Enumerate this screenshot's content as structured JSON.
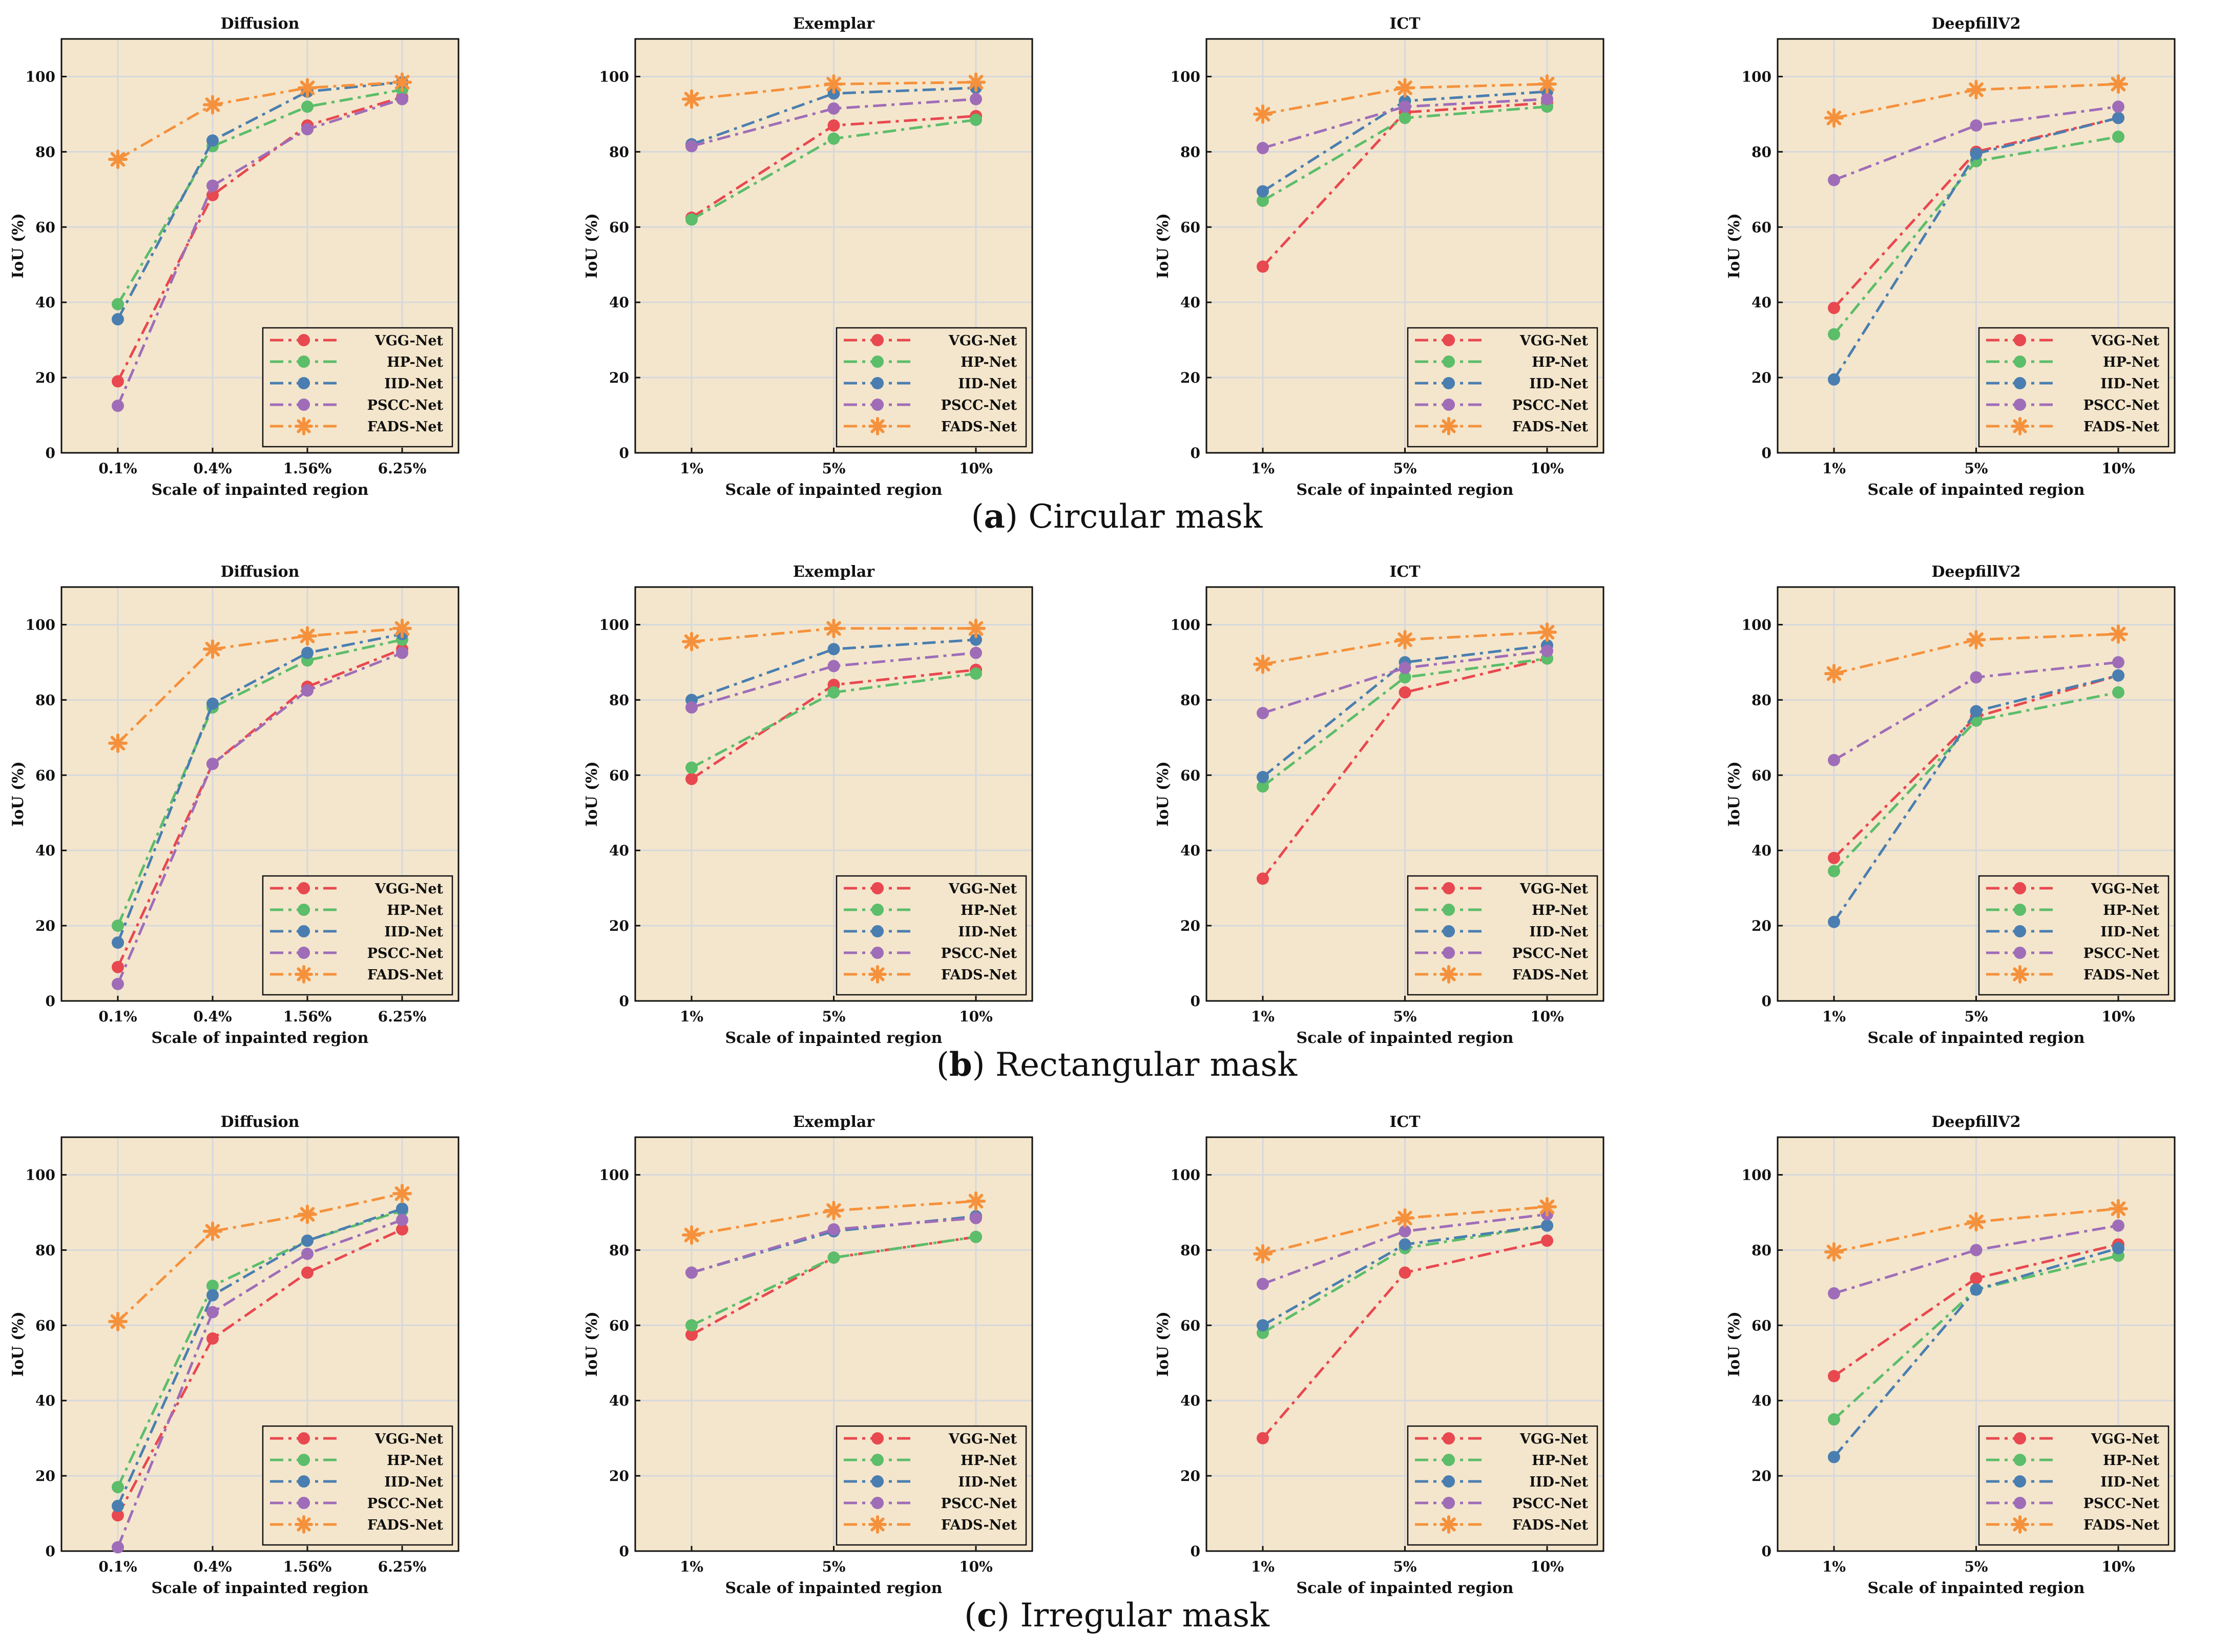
{
  "figure": {
    "background_color": "#f4e6cc",
    "grid_color": "#d6d8dc",
    "series_colors": {
      "VGG-Net": "#e8484f",
      "HP-Net": "#5cbd6a",
      "IID-Net": "#4a7eb0",
      "PSCC-Net": "#9f6db8",
      "FADS-Net": "#f5913c"
    },
    "captions": [
      {
        "letter": "a",
        "open": "(",
        "close": ")",
        "text": " Circular mask"
      },
      {
        "letter": "b",
        "open": "(",
        "close": ")",
        "text": " Rectangular mask"
      },
      {
        "letter": "c",
        "open": "(",
        "close": ")",
        "text": " Irregular mask"
      }
    ]
  },
  "chart_data": [
    {
      "type": "line",
      "row": "a",
      "title": "Diffusion",
      "xlabel": "Scale of inpainted region",
      "ylabel": "IoU (%)",
      "ylim": [
        0,
        110
      ],
      "yticks": [
        0,
        20,
        40,
        60,
        80,
        100
      ],
      "grid": true,
      "legend": "bottom-right",
      "categories": [
        "0.1%",
        "0.4%",
        "1.56%",
        "6.25%"
      ],
      "series": [
        {
          "name": "VGG-Net",
          "values": [
            19,
            68.5,
            87,
            94.5
          ]
        },
        {
          "name": "HP-Net",
          "values": [
            39.5,
            81.5,
            92,
            96.5
          ]
        },
        {
          "name": "IID-Net",
          "values": [
            35.5,
            83,
            96,
            98.5
          ]
        },
        {
          "name": "PSCC-Net",
          "values": [
            12.5,
            71,
            86,
            94
          ]
        },
        {
          "name": "FADS-Net",
          "values": [
            78,
            92.5,
            97,
            98.5
          ]
        }
      ]
    },
    {
      "type": "line",
      "row": "a",
      "title": "Exemplar",
      "xlabel": "Scale of inpainted region",
      "ylabel": "IoU (%)",
      "ylim": [
        0,
        110
      ],
      "yticks": [
        0,
        20,
        40,
        60,
        80,
        100
      ],
      "grid": true,
      "legend": "bottom-right",
      "categories": [
        "1%",
        "5%",
        "10%"
      ],
      "series": [
        {
          "name": "VGG-Net",
          "values": [
            62.5,
            87,
            89.5
          ]
        },
        {
          "name": "HP-Net",
          "values": [
            62,
            83.5,
            88.5
          ]
        },
        {
          "name": "IID-Net",
          "values": [
            82,
            95.5,
            97
          ]
        },
        {
          "name": "PSCC-Net",
          "values": [
            81.5,
            91.5,
            94
          ]
        },
        {
          "name": "FADS-Net",
          "values": [
            94,
            98,
            98.5
          ]
        }
      ]
    },
    {
      "type": "line",
      "row": "a",
      "title": "ICT",
      "xlabel": "Scale of inpainted region",
      "ylabel": "IoU (%)",
      "ylim": [
        0,
        110
      ],
      "yticks": [
        0,
        20,
        40,
        60,
        80,
        100
      ],
      "grid": true,
      "legend": "bottom-right",
      "categories": [
        "1%",
        "5%",
        "10%"
      ],
      "series": [
        {
          "name": "VGG-Net",
          "values": [
            49.5,
            90.5,
            93
          ]
        },
        {
          "name": "HP-Net",
          "values": [
            67,
            89,
            92
          ]
        },
        {
          "name": "IID-Net",
          "values": [
            69.5,
            93.5,
            96
          ]
        },
        {
          "name": "PSCC-Net",
          "values": [
            81,
            92,
            94
          ]
        },
        {
          "name": "FADS-Net",
          "values": [
            90,
            97,
            98
          ]
        }
      ]
    },
    {
      "type": "line",
      "row": "a",
      "title": "DeepfillV2",
      "xlabel": "Scale of inpainted region",
      "ylabel": "IoU (%)",
      "ylim": [
        0,
        110
      ],
      "yticks": [
        0,
        20,
        40,
        60,
        80,
        100
      ],
      "grid": true,
      "legend": "bottom-right",
      "categories": [
        "1%",
        "5%",
        "10%"
      ],
      "series": [
        {
          "name": "VGG-Net",
          "values": [
            38.5,
            80,
            89
          ]
        },
        {
          "name": "HP-Net",
          "values": [
            31.5,
            77.5,
            84
          ]
        },
        {
          "name": "IID-Net",
          "values": [
            19.5,
            79.5,
            89
          ]
        },
        {
          "name": "PSCC-Net",
          "values": [
            72.5,
            87,
            92
          ]
        },
        {
          "name": "FADS-Net",
          "values": [
            89,
            96.5,
            98
          ]
        }
      ]
    },
    {
      "type": "line",
      "row": "b",
      "title": "Diffusion",
      "xlabel": "Scale of inpainted region",
      "ylabel": "IoU (%)",
      "ylim": [
        0,
        110
      ],
      "yticks": [
        0,
        20,
        40,
        60,
        80,
        100
      ],
      "grid": true,
      "legend": "bottom-right",
      "categories": [
        "0.1%",
        "0.4%",
        "1.56%",
        "6.25%"
      ],
      "series": [
        {
          "name": "VGG-Net",
          "values": [
            9,
            63,
            83.5,
            93.5
          ]
        },
        {
          "name": "HP-Net",
          "values": [
            20,
            78,
            90.5,
            96
          ]
        },
        {
          "name": "IID-Net",
          "values": [
            15.5,
            79,
            92.5,
            97.5
          ]
        },
        {
          "name": "PSCC-Net",
          "values": [
            4.5,
            63,
            82.5,
            92.5
          ]
        },
        {
          "name": "FADS-Net",
          "values": [
            68.5,
            93.5,
            97,
            99
          ]
        }
      ]
    },
    {
      "type": "line",
      "row": "b",
      "title": "Exemplar",
      "xlabel": "Scale of inpainted region",
      "ylabel": "IoU (%)",
      "ylim": [
        0,
        110
      ],
      "yticks": [
        0,
        20,
        40,
        60,
        80,
        100
      ],
      "grid": true,
      "legend": "bottom-right",
      "categories": [
        "1%",
        "5%",
        "10%"
      ],
      "series": [
        {
          "name": "VGG-Net",
          "values": [
            59,
            84,
            88
          ]
        },
        {
          "name": "HP-Net",
          "values": [
            62,
            82,
            87
          ]
        },
        {
          "name": "IID-Net",
          "values": [
            80,
            93.5,
            96
          ]
        },
        {
          "name": "PSCC-Net",
          "values": [
            78,
            89,
            92.5
          ]
        },
        {
          "name": "FADS-Net",
          "values": [
            95.5,
            99,
            99
          ]
        }
      ]
    },
    {
      "type": "line",
      "row": "b",
      "title": "ICT",
      "xlabel": "Scale of inpainted region",
      "ylabel": "IoU (%)",
      "ylim": [
        0,
        110
      ],
      "yticks": [
        0,
        20,
        40,
        60,
        80,
        100
      ],
      "grid": true,
      "legend": "bottom-right",
      "categories": [
        "1%",
        "5%",
        "10%"
      ],
      "series": [
        {
          "name": "VGG-Net",
          "values": [
            32.5,
            82,
            91
          ]
        },
        {
          "name": "HP-Net",
          "values": [
            57,
            86,
            91
          ]
        },
        {
          "name": "IID-Net",
          "values": [
            59.5,
            90,
            94.5
          ]
        },
        {
          "name": "PSCC-Net",
          "values": [
            76.5,
            88.5,
            93
          ]
        },
        {
          "name": "FADS-Net",
          "values": [
            89.5,
            96,
            98
          ]
        }
      ]
    },
    {
      "type": "line",
      "row": "b",
      "title": "DeepfillV2",
      "xlabel": "Scale of inpainted region",
      "ylabel": "IoU (%)",
      "ylim": [
        0,
        110
      ],
      "yticks": [
        0,
        20,
        40,
        60,
        80,
        100
      ],
      "grid": true,
      "legend": "bottom-right",
      "categories": [
        "1%",
        "5%",
        "10%"
      ],
      "series": [
        {
          "name": "VGG-Net",
          "values": [
            38,
            75.5,
            86.5
          ]
        },
        {
          "name": "HP-Net",
          "values": [
            34.5,
            74.5,
            82
          ]
        },
        {
          "name": "IID-Net",
          "values": [
            21,
            77,
            86.5
          ]
        },
        {
          "name": "PSCC-Net",
          "values": [
            64,
            86,
            90
          ]
        },
        {
          "name": "FADS-Net",
          "values": [
            87,
            96,
            97.5
          ]
        }
      ]
    },
    {
      "type": "line",
      "row": "c",
      "title": "Diffusion",
      "xlabel": "Scale of inpainted region",
      "ylabel": "IoU (%)",
      "ylim": [
        0,
        110
      ],
      "yticks": [
        0,
        20,
        40,
        60,
        80,
        100
      ],
      "grid": true,
      "legend": "bottom-right",
      "categories": [
        "0.1%",
        "0.4%",
        "1.56%",
        "6.25%"
      ],
      "series": [
        {
          "name": "VGG-Net",
          "values": [
            9.5,
            56.5,
            74,
            85.5
          ]
        },
        {
          "name": "HP-Net",
          "values": [
            17,
            70.5,
            82.5,
            90.5
          ]
        },
        {
          "name": "IID-Net",
          "values": [
            12,
            68,
            82.5,
            91
          ]
        },
        {
          "name": "PSCC-Net",
          "values": [
            1,
            63.5,
            79,
            88
          ]
        },
        {
          "name": "FADS-Net",
          "values": [
            61,
            85,
            89.5,
            95
          ]
        }
      ]
    },
    {
      "type": "line",
      "row": "c",
      "title": "Exemplar",
      "xlabel": "Scale of inpainted region",
      "ylabel": "IoU (%)",
      "ylim": [
        0,
        110
      ],
      "yticks": [
        0,
        20,
        40,
        60,
        80,
        100
      ],
      "grid": true,
      "legend": "bottom-right",
      "categories": [
        "1%",
        "5%",
        "10%"
      ],
      "series": [
        {
          "name": "VGG-Net",
          "values": [
            57.5,
            78,
            83.5
          ]
        },
        {
          "name": "HP-Net",
          "values": [
            60,
            78,
            83.5
          ]
        },
        {
          "name": "IID-Net",
          "values": [
            74,
            85,
            89
          ]
        },
        {
          "name": "PSCC-Net",
          "values": [
            74,
            85.5,
            88.5
          ]
        },
        {
          "name": "FADS-Net",
          "values": [
            84,
            90.5,
            93
          ]
        }
      ]
    },
    {
      "type": "line",
      "row": "c",
      "title": "ICT",
      "xlabel": "Scale of inpainted region",
      "ylabel": "IoU (%)",
      "ylim": [
        0,
        110
      ],
      "yticks": [
        0,
        20,
        40,
        60,
        80,
        100
      ],
      "grid": true,
      "legend": "bottom-right",
      "categories": [
        "1%",
        "5%",
        "10%"
      ],
      "series": [
        {
          "name": "VGG-Net",
          "values": [
            30,
            74,
            82.5
          ]
        },
        {
          "name": "HP-Net",
          "values": [
            58,
            80.5,
            86.5
          ]
        },
        {
          "name": "IID-Net",
          "values": [
            60,
            81.5,
            86.5
          ]
        },
        {
          "name": "PSCC-Net",
          "values": [
            71,
            85,
            89.5
          ]
        },
        {
          "name": "FADS-Net",
          "values": [
            79,
            88.5,
            91.5
          ]
        }
      ]
    },
    {
      "type": "line",
      "row": "c",
      "title": "DeepfillV2",
      "xlabel": "Scale of inpainted region",
      "ylabel": "IoU (%)",
      "ylim": [
        0,
        110
      ],
      "yticks": [
        0,
        20,
        40,
        60,
        80,
        100
      ],
      "grid": true,
      "legend": "bottom-right",
      "categories": [
        "1%",
        "5%",
        "10%"
      ],
      "series": [
        {
          "name": "VGG-Net",
          "values": [
            46.5,
            72.5,
            81.5
          ]
        },
        {
          "name": "HP-Net",
          "values": [
            35,
            69.5,
            78.5
          ]
        },
        {
          "name": "IID-Net",
          "values": [
            25,
            69.5,
            80.5
          ]
        },
        {
          "name": "PSCC-Net",
          "values": [
            68.5,
            80,
            86.5
          ]
        },
        {
          "name": "FADS-Net",
          "values": [
            79.5,
            87.5,
            91
          ]
        }
      ]
    }
  ]
}
